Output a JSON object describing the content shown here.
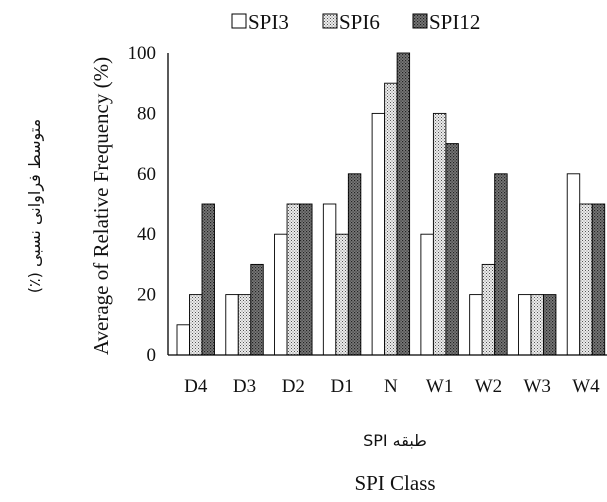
{
  "chart_data": {
    "type": "bar",
    "categories": [
      "D4",
      "D3",
      "D2",
      "D1",
      "N",
      "W1",
      "W2",
      "W3",
      "W4"
    ],
    "series": [
      {
        "name": "SPI3",
        "values": [
          10,
          20,
          40,
          50,
          80,
          40,
          20,
          20,
          60
        ]
      },
      {
        "name": "SPI6",
        "values": [
          20,
          20,
          50,
          40,
          90,
          80,
          30,
          20,
          50
        ]
      },
      {
        "name": "SPI12",
        "values": [
          50,
          30,
          50,
          60,
          100,
          70,
          60,
          20,
          50
        ]
      }
    ],
    "ylim": [
      0,
      100
    ],
    "yticks": [
      "0",
      "20",
      "40",
      "60",
      "80",
      "100"
    ],
    "ylabel": "Average of Relative Frequency (%)",
    "ylabel_fa": "متوسط فراوانی نسبی (٪)",
    "xlabel": "SPI Class",
    "xlabel_fa": "طبقه SPI",
    "legend_position": "top",
    "grid": false,
    "series_styles": [
      "white",
      "light-dotted",
      "dark-dotted"
    ]
  }
}
